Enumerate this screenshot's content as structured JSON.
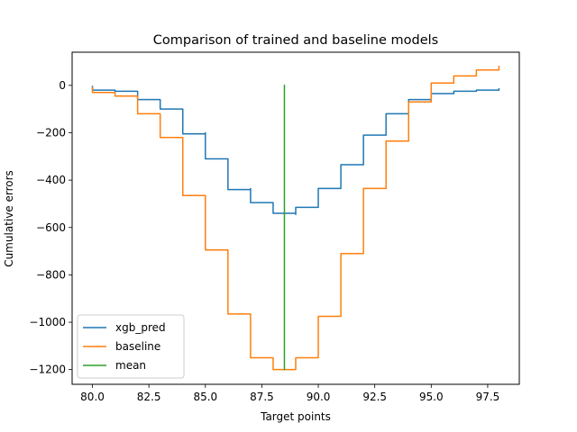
{
  "chart_data": {
    "type": "line",
    "title": "Comparison of trained and baseline models",
    "xlabel": "Target points",
    "ylabel": "Cumulative errors",
    "xlim": [
      79.1,
      98.9
    ],
    "ylim": [
      -1262,
      140
    ],
    "xticks": [
      80.0,
      82.5,
      85.0,
      87.5,
      90.0,
      92.5,
      95.0,
      97.5
    ],
    "xtick_labels": [
      "80.0",
      "82.5",
      "85.0",
      "87.5",
      "90.0",
      "92.5",
      "95.0",
      "97.5"
    ],
    "yticks": [
      0,
      -200,
      -400,
      -600,
      -800,
      -1000,
      -1200
    ],
    "ytick_labels": [
      "0",
      "−200",
      "−400",
      "−600",
      "−800",
      "−1000",
      "−1200"
    ],
    "legend": {
      "placement": "lower-left"
    },
    "series": [
      {
        "name": "xgb_pred",
        "color": "#1f77b4",
        "points": [
          [
            80,
            -5
          ],
          [
            80,
            -20
          ],
          [
            81,
            -20
          ],
          [
            81,
            -25
          ],
          [
            82,
            -25
          ],
          [
            82,
            -35
          ],
          [
            82,
            -60
          ],
          [
            83,
            -60
          ],
          [
            83,
            -100
          ],
          [
            84,
            -100
          ],
          [
            84,
            -105
          ],
          [
            84,
            -205
          ],
          [
            85,
            -205
          ],
          [
            85,
            -200
          ],
          [
            85,
            -310
          ],
          [
            86,
            -310
          ],
          [
            86,
            -440
          ],
          [
            87,
            -440
          ],
          [
            87,
            -435
          ],
          [
            87,
            -495
          ],
          [
            88,
            -495
          ],
          [
            88,
            -540
          ],
          [
            89,
            -540
          ],
          [
            89,
            -545
          ],
          [
            89,
            -515
          ],
          [
            90,
            -515
          ],
          [
            90,
            -435
          ],
          [
            91,
            -435
          ],
          [
            91,
            -430
          ],
          [
            91,
            -335
          ],
          [
            92,
            -335
          ],
          [
            92,
            -210
          ],
          [
            93,
            -210
          ],
          [
            93,
            -120
          ],
          [
            94,
            -120
          ],
          [
            94,
            -115
          ],
          [
            94,
            -60
          ],
          [
            95,
            -60
          ],
          [
            95,
            -55
          ],
          [
            95,
            -35
          ],
          [
            96,
            -35
          ],
          [
            96,
            -25
          ],
          [
            97,
            -25
          ],
          [
            97,
            -20
          ],
          [
            98,
            -20
          ],
          [
            98,
            -15
          ]
        ]
      },
      {
        "name": "baseline",
        "color": "#ff7f0e",
        "points": [
          [
            80,
            -10
          ],
          [
            80,
            -30
          ],
          [
            81,
            -30
          ],
          [
            81,
            -45
          ],
          [
            82,
            -45
          ],
          [
            82,
            -55
          ],
          [
            82,
            -120
          ],
          [
            83,
            -120
          ],
          [
            83,
            -220
          ],
          [
            84,
            -220
          ],
          [
            84,
            -465
          ],
          [
            85,
            -465
          ],
          [
            85,
            -695
          ],
          [
            86,
            -695
          ],
          [
            86,
            -965
          ],
          [
            87,
            -965
          ],
          [
            87,
            -1150
          ],
          [
            88,
            -1150
          ],
          [
            88,
            -1200
          ],
          [
            89,
            -1200
          ],
          [
            89,
            -1150
          ],
          [
            90,
            -1150
          ],
          [
            90,
            -975
          ],
          [
            91,
            -975
          ],
          [
            91,
            -710
          ],
          [
            92,
            -710
          ],
          [
            92,
            -435
          ],
          [
            93,
            -435
          ],
          [
            93,
            -430
          ],
          [
            93,
            -235
          ],
          [
            94,
            -235
          ],
          [
            94,
            -70
          ],
          [
            95,
            -70
          ],
          [
            95,
            -65
          ],
          [
            95,
            10
          ],
          [
            96,
            10
          ],
          [
            96,
            40
          ],
          [
            97,
            40
          ],
          [
            97,
            65
          ],
          [
            98,
            65
          ],
          [
            98,
            80
          ]
        ]
      },
      {
        "name": "mean",
        "color": "#2ca02c",
        "points": [
          [
            88.5,
            0
          ],
          [
            88.5,
            -1200
          ]
        ]
      }
    ]
  }
}
